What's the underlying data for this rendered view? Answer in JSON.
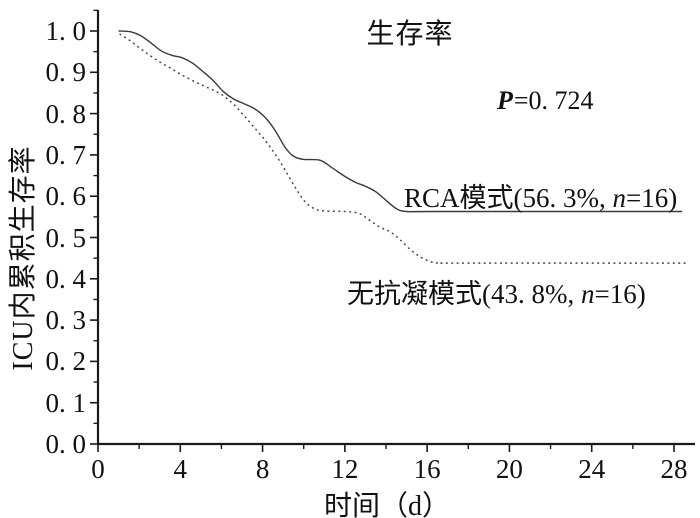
{
  "chart_data": {
    "type": "line",
    "subtype": "kaplan-meier-survival",
    "title": "生存率",
    "xlabel": "时间（d）",
    "ylabel": "ICU内累积生存率",
    "p_annotation": {
      "symbol": "P",
      "text": "=0. 724"
    },
    "xlim": [
      0,
      28
    ],
    "ylim": [
      0.0,
      1.0
    ],
    "grid": false,
    "legend_position": "inline-curve-labels",
    "axis_color": "#1a1a1a",
    "x_ticks": [
      {
        "value": 0,
        "label": "0"
      },
      {
        "value": 4,
        "label": "4"
      },
      {
        "value": 8,
        "label": "8"
      },
      {
        "value": 12,
        "label": "12"
      },
      {
        "value": 16,
        "label": "16"
      },
      {
        "value": 20,
        "label": "20"
      },
      {
        "value": 24,
        "label": "24"
      },
      {
        "value": 28,
        "label": "28"
      }
    ],
    "x_minor_ticks": [
      2,
      6,
      10,
      14,
      18,
      22,
      26
    ],
    "y_ticks": [
      {
        "value": 0.0,
        "label": "0. 0"
      },
      {
        "value": 0.1,
        "label": "0. 1"
      },
      {
        "value": 0.2,
        "label": "0. 2"
      },
      {
        "value": 0.3,
        "label": "0. 3"
      },
      {
        "value": 0.4,
        "label": "0. 4"
      },
      {
        "value": 0.5,
        "label": "0. 5"
      },
      {
        "value": 0.6,
        "label": "0. 6"
      },
      {
        "value": 0.7,
        "label": "0. 7"
      },
      {
        "value": 0.8,
        "label": "0. 8"
      },
      {
        "value": 0.9,
        "label": "0. 9"
      },
      {
        "value": 1.0,
        "label": "1. 0"
      }
    ],
    "y_minor_ticks": [
      0.05,
      0.15,
      0.25,
      0.35,
      0.45,
      0.55,
      0.65,
      0.75,
      0.85,
      0.95,
      1.05
    ],
    "series": [
      {
        "name": "RCA模式",
        "label_prefix": "RCA模式(56. 3%, ",
        "label_n": "n",
        "label_suffix": "=16)",
        "survival_percent": 56.3,
        "n": 16,
        "line_style": "solid",
        "color": "#3a3a3a",
        "points": [
          [
            1.0,
            1.0
          ],
          [
            1.6,
            0.998
          ],
          [
            2.1,
            0.988
          ],
          [
            2.6,
            0.97
          ],
          [
            3.1,
            0.951
          ],
          [
            3.6,
            0.941
          ],
          [
            4.1,
            0.935
          ],
          [
            4.6,
            0.922
          ],
          [
            5.1,
            0.902
          ],
          [
            5.6,
            0.88
          ],
          [
            6.1,
            0.853
          ],
          [
            6.6,
            0.835
          ],
          [
            7.1,
            0.824
          ],
          [
            7.6,
            0.812
          ],
          [
            8.1,
            0.792
          ],
          [
            8.6,
            0.76
          ],
          [
            9.1,
            0.718
          ],
          [
            9.5,
            0.697
          ],
          [
            10.0,
            0.689
          ],
          [
            10.8,
            0.687
          ],
          [
            11.4,
            0.668
          ],
          [
            12.0,
            0.648
          ],
          [
            12.5,
            0.634
          ],
          [
            13.0,
            0.624
          ],
          [
            13.5,
            0.611
          ],
          [
            14.0,
            0.59
          ],
          [
            14.5,
            0.57
          ],
          [
            15.0,
            0.563
          ],
          [
            16.5,
            0.563
          ],
          [
            28.4,
            0.563
          ]
        ]
      },
      {
        "name": "无抗凝模式",
        "label_prefix": "无抗凝模式(43. 8%, ",
        "label_n": "n",
        "label_suffix": "=16)",
        "survival_percent": 43.8,
        "n": 16,
        "line_style": "dashed",
        "color": "#4a4a4a",
        "points": [
          [
            1.05,
            0.993
          ],
          [
            1.6,
            0.975
          ],
          [
            2.1,
            0.956
          ],
          [
            2.6,
            0.938
          ],
          [
            3.1,
            0.922
          ],
          [
            3.6,
            0.908
          ],
          [
            4.1,
            0.893
          ],
          [
            4.6,
            0.88
          ],
          [
            5.1,
            0.868
          ],
          [
            5.6,
            0.857
          ],
          [
            6.1,
            0.843
          ],
          [
            6.6,
            0.822
          ],
          [
            7.1,
            0.795
          ],
          [
            7.6,
            0.766
          ],
          [
            8.1,
            0.737
          ],
          [
            8.6,
            0.703
          ],
          [
            9.1,
            0.663
          ],
          [
            9.6,
            0.62
          ],
          [
            10.1,
            0.585
          ],
          [
            10.6,
            0.568
          ],
          [
            11.1,
            0.564
          ],
          [
            12.0,
            0.563
          ],
          [
            12.7,
            0.558
          ],
          [
            13.2,
            0.542
          ],
          [
            13.7,
            0.525
          ],
          [
            14.2,
            0.514
          ],
          [
            14.7,
            0.494
          ],
          [
            15.2,
            0.47
          ],
          [
            15.7,
            0.452
          ],
          [
            16.2,
            0.441
          ],
          [
            16.6,
            0.438
          ],
          [
            18.0,
            0.438
          ],
          [
            28.6,
            0.438
          ]
        ]
      }
    ]
  }
}
